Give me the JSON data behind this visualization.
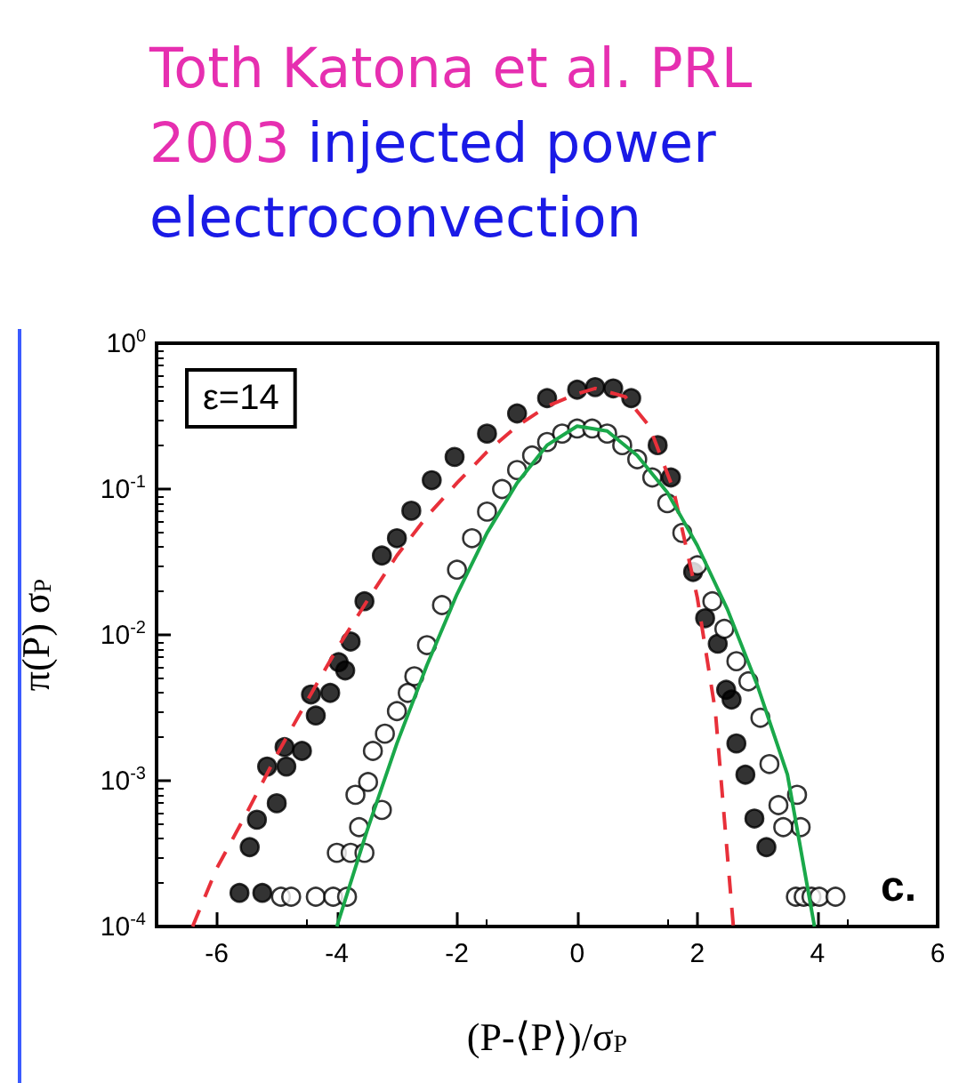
{
  "chart_data": {
    "type": "scatter",
    "title": "Toth Katona et al. PRL 2003",
    "subtitle": "injected power electroconvection",
    "xlabel": "(P-⟨P⟩)/σ$_{P}$",
    "ylabel": "π(P) σ$_{P}$",
    "annotations": [
      "ε=14",
      "c."
    ],
    "xlim": [
      -7,
      6
    ],
    "xticks": [
      -6,
      -4,
      -2,
      0,
      2,
      4,
      6
    ],
    "log": "y",
    "ylim": [
      0.0001,
      1
    ],
    "yticks": [
      {
        "value": 0.0001,
        "label": "10$^{-4}$"
      },
      {
        "value": 0.001,
        "label": "10$^{-3}$"
      },
      {
        "value": 0.01,
        "label": "10$^{-2}$"
      },
      {
        "value": 0.1,
        "label": "10$^{-1}$"
      },
      {
        "value": 1,
        "label": "10$^{0}$"
      }
    ],
    "grid": false,
    "series": [
      {
        "marker": "circle",
        "color": "#000000",
        "x": [
          -5.62,
          -5.24,
          -5.45,
          -5.33,
          -5.0,
          -5.16,
          -4.87,
          -4.84,
          -4.58,
          -4.35,
          -4.43,
          -4.11,
          -3.86,
          -3.97,
          -3.77,
          -3.54,
          -3.25,
          -3.0,
          -2.76,
          -2.42,
          -2.04,
          -1.5,
          -1.0,
          -0.5,
          0,
          0.3,
          0.6,
          0.9,
          1.34,
          1.56,
          1.93,
          2.13,
          2.34,
          2.48,
          2.57,
          2.65,
          2.8,
          2.95,
          3.15
        ],
        "values": [
          0.00017,
          0.00017,
          0.00035,
          0.00054,
          0.0007,
          0.00125,
          0.0017,
          0.00125,
          0.0016,
          0.0028,
          0.0039,
          0.004,
          0.0057,
          0.0065,
          0.009,
          0.017,
          0.035,
          0.046,
          0.071,
          0.115,
          0.166,
          0.24,
          0.33,
          0.42,
          0.48,
          0.5,
          0.49,
          0.42,
          0.2,
          0.12,
          0.027,
          0.013,
          0.0087,
          0.0042,
          0.0036,
          0.0018,
          0.0011,
          0.00055,
          0.00035
        ]
      },
      {
        "marker": "circle",
        "color": "#ffffff",
        "x": [
          -4.93,
          -4.76,
          -4.35,
          -4.06,
          -3.83,
          -4.0,
          -3.77,
          -3.54,
          -3.63,
          -3.69,
          -3.48,
          -3.25,
          -3.4,
          -3.2,
          -3.0,
          -2.82,
          -2.71,
          -2.5,
          -2.25,
          -2.0,
          -1.75,
          -1.5,
          -1.25,
          -1.0,
          -0.75,
          -0.5,
          -0.25,
          0,
          0.25,
          0.5,
          0.75,
          1.0,
          1.25,
          1.5,
          1.75,
          2.0,
          2.25,
          2.45,
          2.65,
          2.85,
          3.05,
          3.2,
          3.66,
          3.35,
          3.72,
          3.43,
          3.64,
          3.77,
          3.9,
          4.03,
          4.3
        ],
        "values": [
          0.00016,
          0.00016,
          0.00016,
          0.00016,
          0.00016,
          0.00032,
          0.00032,
          0.00032,
          0.00048,
          0.0008,
          0.00098,
          0.00063,
          0.0016,
          0.0021,
          0.003,
          0.004,
          0.0052,
          0.0085,
          0.016,
          0.028,
          0.046,
          0.07,
          0.1,
          0.135,
          0.17,
          0.21,
          0.24,
          0.26,
          0.26,
          0.24,
          0.2,
          0.16,
          0.12,
          0.08,
          0.05,
          0.03,
          0.017,
          0.011,
          0.0066,
          0.0048,
          0.0027,
          0.0013,
          0.0008,
          0.00068,
          0.00048,
          0.00048,
          0.00016,
          0.00016,
          0.00016,
          0.00016,
          0.00016
        ]
      },
      {
        "type": "line",
        "marker": "none",
        "line_style": "dashed",
        "color": "#e8303a",
        "x": [
          -6.4,
          -6,
          -5.5,
          -5,
          -4.5,
          -4,
          -3.5,
          -3,
          -2.5,
          -2,
          -1.5,
          -1,
          -0.5,
          0,
          0.3,
          0.8,
          1.2,
          1.6,
          2,
          2.3,
          2.6
        ],
        "values": [
          0.0001,
          0.00025,
          0.0006,
          0.0015,
          0.0035,
          0.008,
          0.017,
          0.035,
          0.065,
          0.11,
          0.18,
          0.27,
          0.37,
          0.45,
          0.49,
          0.43,
          0.27,
          0.1,
          0.018,
          0.003,
          0.0001
        ]
      },
      {
        "type": "line",
        "marker": "none",
        "line_style": "solid",
        "color": "#1aa84a",
        "x": [
          -4,
          -3.5,
          -3,
          -2.5,
          -2,
          -1.5,
          -1,
          -0.5,
          0,
          0.5,
          1,
          1.5,
          2,
          2.5,
          3,
          3.5,
          3.95
        ],
        "values": [
          0.0001,
          0.00045,
          0.0018,
          0.0062,
          0.019,
          0.05,
          0.11,
          0.2,
          0.27,
          0.25,
          0.17,
          0.095,
          0.041,
          0.015,
          0.0045,
          0.0011,
          0.0001
        ]
      }
    ]
  }
}
